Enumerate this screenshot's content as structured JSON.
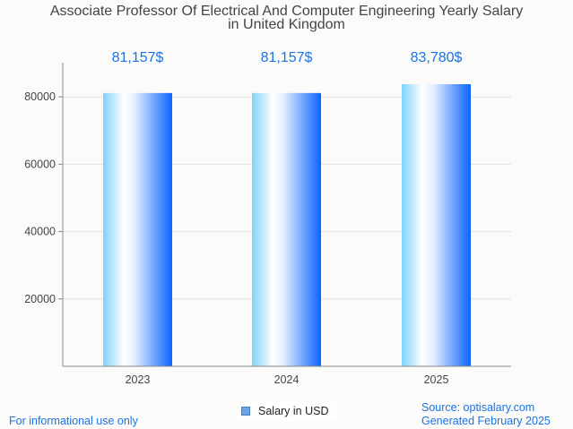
{
  "chart_data": {
    "type": "bar",
    "title": "Associate Professor Of Electrical And Computer Engineering Yearly Salary",
    "subtitle": "in United Kingdom",
    "categories": [
      "2023",
      "2024",
      "2025"
    ],
    "values": [
      81157,
      81157,
      83780
    ],
    "data_labels": [
      "81,157$",
      "81,157$",
      "83,780$"
    ],
    "yticks": [
      20000,
      40000,
      60000,
      80000
    ],
    "ytick_labels": [
      "20000",
      "40000",
      "60000",
      "80000"
    ],
    "ylim": [
      0,
      90000
    ],
    "xlabel": "",
    "ylabel": "",
    "grid": true,
    "legend": {
      "position": "bottom-center",
      "entries": [
        "Salary in USD"
      ]
    },
    "colors": {
      "bar_left": "#7dd3fb",
      "bar_mid": "#ffffff",
      "bar_right": "#0a64ff",
      "label": "#1a73e8",
      "grid": "#e2e2e2",
      "axis": "#888888"
    }
  },
  "footer": {
    "left": "For informational use only",
    "source": "Source: optisalary.com",
    "generated": "Generated February 2025"
  }
}
